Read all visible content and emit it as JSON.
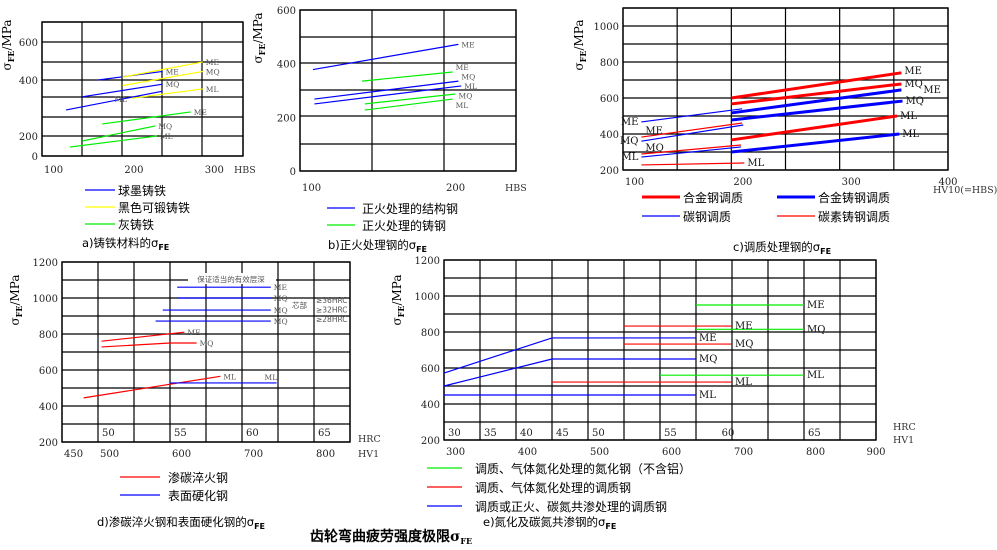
{
  "main_title": {
    "text": "齿轮弯曲疲劳强度极限σ",
    "sub": "FE"
  },
  "chart_data": [
    {
      "type": "line",
      "panel": "a",
      "caption": {
        "text": "a)铸铁材料的σ",
        "sub": "FE"
      },
      "ylabel": {
        "symbol": "σ",
        "sub": "FE",
        "unit": "/MPa"
      },
      "xlabel": "HBS",
      "xlim": [
        100,
        350
      ],
      "ylim": [
        0,
        700
      ],
      "xticks": [
        100,
        200,
        300
      ],
      "yticks": [
        0,
        200,
        400,
        600
      ],
      "grid": true,
      "series": [
        {
          "name": "球墨铸铁",
          "color": "#0000ff",
          "curves": [
            {
              "grade": "ME",
              "points": [
                [
                  170,
                  400
                ],
                [
                  250,
                  445
                ]
              ]
            },
            {
              "grade": "MQ",
              "points": [
                [
                  150,
                  340
                ],
                [
                  250,
                  385
                ]
              ]
            },
            {
              "grade": "ML",
              "points": [
                [
                  130,
                  293
                ],
                [
                  250,
                  360
                ]
              ],
              "label_at": "mid"
            }
          ]
        },
        {
          "name": "黑色可锻铸铁",
          "color": "#ffff00",
          "curves": [
            {
              "grade": "ME",
              "points": [
                [
                  200,
                  415
                ],
                [
                  300,
                  495
                ]
              ]
            },
            {
              "grade": "MQ",
              "points": [
                [
                  200,
                  380
                ],
                [
                  300,
                  445
                ]
              ]
            },
            {
              "grade": "ML",
              "points": [
                [
                  212,
                  335
                ],
                [
                  300,
                  368
                ]
              ]
            }
          ]
        },
        {
          "name": "灰铸铁",
          "color": "#00ee00",
          "curves": [
            {
              "grade": "ME",
              "points": [
                [
                  175,
                  243
                ],
                [
                  285,
                  286
                ]
              ]
            },
            {
              "grade": "MQ",
              "points": [
                [
                  150,
                  150
                ],
                [
                  241,
                  236
                ]
              ]
            },
            {
              "grade": "ML",
              "points": [
                [
                  135,
                  90
                ],
                [
                  243,
                  200
                ]
              ]
            }
          ]
        }
      ]
    },
    {
      "type": "line",
      "panel": "b",
      "caption": {
        "text": "b)正火处理钢的σ",
        "sub": "FE"
      },
      "ylabel": {
        "symbol": "σ",
        "sub": "FE",
        "unit": "/MPa"
      },
      "xlabel": "HBS",
      "xlim": [
        100,
        250
      ],
      "ylim": [
        0,
        600
      ],
      "xticks": [
        100,
        200
      ],
      "yticks": [
        0,
        200,
        400,
        600
      ],
      "grid": true,
      "series": [
        {
          "name": "正火处理的结构钢",
          "color": "#0000ff",
          "curves": [
            {
              "grade": "ME",
              "points": [
                [
                  109,
                  378
                ],
                [
                  210,
                  472
                ]
              ]
            },
            {
              "grade": "MQ",
              "points": [
                [
                  110,
                  268
                ],
                [
                  210,
                  335
                ]
              ]
            },
            {
              "grade": "ML",
              "points": [
                [
                  110,
                  250
                ],
                [
                  212,
                  317
                ]
              ]
            }
          ]
        },
        {
          "name": "正火处理的铸钢",
          "color": "#00ee00",
          "curves": [
            {
              "grade": "ME",
              "points": [
                [
                  143,
                  335
                ],
                [
                  206,
                  369
                ]
              ]
            },
            {
              "grade": "MQ",
              "points": [
                [
                  145,
                  250
                ],
                [
                  208,
                  287
                ]
              ]
            },
            {
              "grade": "ML",
              "points": [
                [
                  145,
                  227
                ],
                [
                  206,
                  268
                ]
              ]
            }
          ]
        }
      ]
    },
    {
      "type": "line",
      "panel": "c",
      "caption": {
        "text": "c)调质处理钢的σ",
        "sub": "FE"
      },
      "ylabel": {
        "symbol": "σ",
        "sub": "FE",
        "unit": "/MPa"
      },
      "xlabel": "HV10(=HBS)",
      "xlim": [
        100,
        400
      ],
      "ylim": [
        200,
        1100
      ],
      "xticks": [
        100,
        200,
        300,
        400
      ],
      "yticks": [
        200,
        400,
        600,
        800,
        1000
      ],
      "grid": true,
      "series": [
        {
          "name": "合金钢调质",
          "color": "#ff0000",
          "weight": "thick",
          "curves": [
            {
              "grade": "ME",
              "points": [
                [
                  200,
                  600
                ],
                [
                  357,
                  740
                ]
              ]
            },
            {
              "grade": "MQ",
              "points": [
                [
                  200,
                  567
                ],
                [
                  357,
                  678
                ]
              ]
            },
            {
              "grade": "ML",
              "points": [
                [
                  200,
                  367
                ],
                [
                  353,
                  500
                ]
              ]
            }
          ]
        },
        {
          "name": "合金铸钢调质",
          "color": "#0000ff",
          "weight": "thick",
          "curves": [
            {
              "grade": "ME",
              "points": [
                [
                  200,
                  517
                ],
                [
                  357,
                  645
                ]
              ]
            },
            {
              "grade": "MQ",
              "points": [
                [
                  200,
                  478
                ],
                [
                  358,
                  583
                ]
              ]
            },
            {
              "grade": "ML",
              "points": [
                [
                  200,
                  300
                ],
                [
                  355,
                  400
                ]
              ]
            }
          ]
        },
        {
          "name": "碳钢调质",
          "color": "#0000ff",
          "weight": "thin",
          "curves": [
            {
              "grade": "ME",
              "points": [
                [
                  117,
                  467
                ],
                [
                  210,
                  540
                ]
              ],
              "label_at": "start"
            },
            {
              "grade": "MQ",
              "points": [
                [
                  117,
                  360
                ],
                [
                  211,
                  450
                ]
              ],
              "label_at": "start"
            },
            {
              "grade": "ML",
              "points": [
                [
                  117,
                  272
                ],
                [
                  209,
                  328
                ]
              ],
              "label_at": "start"
            }
          ]
        },
        {
          "name": "碳素铸钢调质",
          "color": "#ff0000",
          "weight": "thin",
          "curves": [
            {
              "grade": "ME",
              "points": [
                [
                  117,
                  383
                ],
                [
                  210,
                  461
                ]
              ],
              "label_at": "start"
            },
            {
              "grade": "MQ",
              "points": [
                [
                  117,
                  289
                ],
                [
                  209,
                  339
                ]
              ],
              "label_at": "start"
            },
            {
              "grade": "ML",
              "points": [
                [
                  117,
                  228
                ],
                [
                  212,
                  239
                ]
              ]
            }
          ]
        }
      ]
    },
    {
      "type": "line",
      "panel": "d",
      "caption": {
        "text": "d)渗碳淬火钢和表面硬化钢的σ",
        "sub": "FE"
      },
      "ylabel": {
        "symbol": "σ",
        "sub": "FE",
        "unit": "/MPa"
      },
      "xlabel": "HV1",
      "xlabel2": "HRC",
      "xlim": [
        450,
        850
      ],
      "ylim": [
        200,
        1200
      ],
      "xticks": [
        450,
        500,
        600,
        700,
        800
      ],
      "yticks": [
        200,
        400,
        600,
        800,
        1000,
        1200
      ],
      "hrc_ticks": [
        {
          "hrc": "50",
          "hv": 500
        },
        {
          "hrc": "55",
          "hv": 600
        },
        {
          "hrc": "60",
          "hv": 700
        },
        {
          "hrc": "65",
          "hv": 800
        }
      ],
      "grid": true,
      "annotations": {
        "depth_note": "保证适当的有效层深",
        "core": "芯部",
        "core_hardness": [
          "≥36HRC",
          "≥32HRC",
          "≥28HRC"
        ]
      },
      "series": [
        {
          "name": "渗碳淬火钢",
          "color": "#ff0000",
          "curves": [
            {
              "grade": "ME",
              "points": [
                [
                  505,
                  760
                ],
                [
                  620,
                  810
                ]
              ]
            },
            {
              "grade": "MQ",
              "points": [
                [
                  505,
                  728
                ],
                [
                  600,
                  750
                ],
                [
                  637,
                  750
                ]
              ]
            },
            {
              "grade": "ML",
              "points": [
                [
                  480,
                  445
                ],
                [
                  670,
                  565
                ]
              ]
            }
          ]
        },
        {
          "name": "表面硬化钢",
          "color": "#0000ff",
          "curves": [
            {
              "grade": "ME",
              "points": [
                [
                  610,
                  1060
                ],
                [
                  740,
                  1060
                ]
              ]
            },
            {
              "grade": "MQ",
              "points": [
                [
                  610,
                  1000
                ],
                [
                  740,
                  1000
                ]
              ]
            },
            {
              "grade": "MQ",
              "points": [
                [
                  590,
                  933
                ],
                [
                  740,
                  933
                ]
              ]
            },
            {
              "grade": "MQ",
              "points": [
                [
                  580,
                  872
                ],
                [
                  740,
                  872
                ]
              ]
            },
            {
              "grade": "ML",
              "points": [
                [
                  600,
                  528
                ],
                [
                  748,
                  528
                ]
              ],
              "label_at": "end-above"
            }
          ]
        }
      ]
    },
    {
      "type": "line",
      "panel": "e",
      "caption": {
        "text": "e)氮化及碳氮共渗钢的σ",
        "sub": "FE"
      },
      "ylabel": {
        "symbol": "σ",
        "sub": "FE",
        "unit": "/MPa"
      },
      "xlabel": "HV1",
      "xlabel2": "HRC",
      "xlim": [
        300,
        900
      ],
      "ylim": [
        200,
        1200
      ],
      "xticks": [
        300,
        400,
        500,
        600,
        700,
        800,
        900
      ],
      "yticks": [
        200,
        400,
        600,
        800,
        1000,
        1200
      ],
      "hrc_ticks": [
        {
          "hrc": "30",
          "hv": 300
        },
        {
          "hrc": "35",
          "hv": 350
        },
        {
          "hrc": "40",
          "hv": 400
        },
        {
          "hrc": "45",
          "hv": 450
        },
        {
          "hrc": "50",
          "hv": 500
        },
        {
          "hrc": "55",
          "hv": 600
        },
        {
          "hrc": "60",
          "hv": 680
        },
        {
          "hrc": "65",
          "hv": 800
        }
      ],
      "grid": true,
      "series": [
        {
          "name": "调质、气体氮化处理的氮化钢（不含铝）",
          "color": "#00ee00",
          "curves": [
            {
              "grade": "ME",
              "points": [
                [
                  650,
                  950
                ],
                [
                  800,
                  950
                ]
              ]
            },
            {
              "grade": "MQ",
              "points": [
                [
                  650,
                  815
                ],
                [
                  800,
                  815
                ]
              ]
            },
            {
              "grade": "ML",
              "points": [
                [
                  600,
                  560
                ],
                [
                  800,
                  560
                ]
              ]
            }
          ]
        },
        {
          "name": "调质、气体氮化处理的调质钢",
          "color": "#ff0000",
          "curves": [
            {
              "grade": "ME",
              "points": [
                [
                  550,
                  833
                ],
                [
                  700,
                  833
                ]
              ]
            },
            {
              "grade": "MQ",
              "points": [
                [
                  550,
                  733
                ],
                [
                  700,
                  733
                ]
              ]
            },
            {
              "grade": "ML",
              "points": [
                [
                  450,
                  522
                ],
                [
                  700,
                  522
                ]
              ]
            }
          ]
        },
        {
          "name": "调质或正火、碳氮共渗处理的调质钢",
          "color": "#0000ff",
          "curves": [
            {
              "grade": "ME",
              "points": [
                [
                  300,
                  572
                ],
                [
                  450,
                  767
                ],
                [
                  650,
                  767
                ]
              ]
            },
            {
              "grade": "MQ",
              "points": [
                [
                  300,
                  500
                ],
                [
                  450,
                  650
                ],
                [
                  650,
                  650
                ]
              ]
            },
            {
              "grade": "ML",
              "points": [
                [
                  300,
                  450
                ],
                [
                  650,
                  450
                ]
              ]
            }
          ]
        }
      ]
    }
  ]
}
